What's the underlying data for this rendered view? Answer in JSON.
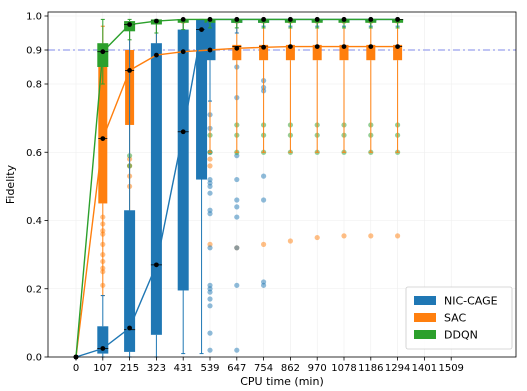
{
  "chart_data": {
    "type": "box",
    "xlabel": "CPU time (min)",
    "ylabel": "Fidelity",
    "x_ticks": [
      0,
      107,
      215,
      323,
      431,
      539,
      647,
      754,
      862,
      970,
      1078,
      1186,
      1294,
      1401,
      1509
    ],
    "y_ticks": [
      0.0,
      0.2,
      0.4,
      0.6,
      0.8,
      0.9,
      1.0
    ],
    "y_tick_labels": [
      "0.0",
      "0.2",
      "0.4",
      "0.6",
      "0.8",
      "0.9",
      "1.0"
    ],
    "xlim": [
      -54,
      1509
    ],
    "ylim": [
      0.0,
      1.0
    ],
    "y_scale": "piecewise linear: 0–0.8 compressed, 0.8–1.0 expanded",
    "reference_line": {
      "y": 0.9,
      "color": "#aab0f0",
      "style": "dash-dot"
    },
    "legend_position": "bottom-right",
    "grid": true,
    "series": [
      {
        "name": "NIC-CAGE",
        "color": "#1f77b4",
        "mean": [
          [
            0,
            0.0
          ],
          [
            107,
            0.025
          ],
          [
            215,
            0.085
          ],
          [
            323,
            0.27
          ],
          [
            431,
            0.66
          ],
          [
            505,
            0.96
          ],
          [
            539,
            0.99
          ],
          [
            647,
            0.99
          ],
          [
            754,
            0.99
          ],
          [
            862,
            0.99
          ],
          [
            970,
            0.99
          ],
          [
            1078,
            0.99
          ],
          [
            1186,
            0.99
          ],
          [
            1294,
            0.99
          ]
        ],
        "boxes": [
          {
            "x": 107,
            "whislo": 0.0,
            "q1": 0.01,
            "med": 0.025,
            "q3": 0.09,
            "whishi": 0.18
          },
          {
            "x": 215,
            "whislo": 0.0,
            "q1": 0.015,
            "med": 0.08,
            "q3": 0.43,
            "whishi": 0.98
          },
          {
            "x": 323,
            "whislo": 0.0,
            "q1": 0.065,
            "med": 0.27,
            "q3": 0.92,
            "whishi": 0.98
          },
          {
            "x": 431,
            "whislo": 0.01,
            "q1": 0.195,
            "med": 0.66,
            "q3": 0.96,
            "whishi": 0.99
          },
          {
            "x": 505,
            "whislo": 0.01,
            "q1": 0.52,
            "med": 0.96,
            "q3": 0.99,
            "whishi": 0.99
          },
          {
            "x": 539,
            "whislo": 0.75,
            "q1": 0.87,
            "med": 0.99,
            "q3": 0.99,
            "whishi": 0.99
          },
          {
            "x": 647,
            "whislo": 0.95,
            "q1": 0.98,
            "med": 0.99,
            "q3": 0.99,
            "whishi": 0.99
          },
          {
            "x": 754,
            "whislo": 0.97,
            "q1": 0.98,
            "med": 0.99,
            "q3": 0.99,
            "whishi": 0.99
          },
          {
            "x": 862,
            "whislo": 0.97,
            "q1": 0.985,
            "med": 0.99,
            "q3": 0.99,
            "whishi": 0.99
          },
          {
            "x": 970,
            "whislo": 0.97,
            "q1": 0.985,
            "med": 0.99,
            "q3": 0.99,
            "whishi": 0.99
          },
          {
            "x": 1078,
            "whislo": 0.97,
            "q1": 0.985,
            "med": 0.99,
            "q3": 0.99,
            "whishi": 0.99
          },
          {
            "x": 1186,
            "whislo": 0.97,
            "q1": 0.985,
            "med": 0.99,
            "q3": 0.99,
            "whishi": 0.99
          },
          {
            "x": 1294,
            "whislo": 0.97,
            "q1": 0.985,
            "med": 0.99,
            "q3": 0.99,
            "whishi": 0.99
          }
        ],
        "outliers": [
          [
            539,
            0.71
          ],
          [
            539,
            0.67
          ],
          [
            539,
            0.6
          ],
          [
            539,
            0.52
          ],
          [
            539,
            0.51
          ],
          [
            539,
            0.5
          ],
          [
            539,
            0.48
          ],
          [
            539,
            0.43
          ],
          [
            539,
            0.42
          ],
          [
            539,
            0.32
          ],
          [
            539,
            0.21
          ],
          [
            539,
            0.2
          ],
          [
            539,
            0.19
          ],
          [
            539,
            0.17
          ],
          [
            539,
            0.15
          ],
          [
            539,
            0.07
          ],
          [
            539,
            0.02
          ],
          [
            647,
            0.85
          ],
          [
            647,
            0.76
          ],
          [
            647,
            0.59
          ],
          [
            647,
            0.52
          ],
          [
            647,
            0.46
          ],
          [
            647,
            0.44
          ],
          [
            647,
            0.41
          ],
          [
            647,
            0.32
          ],
          [
            647,
            0.21
          ],
          [
            647,
            0.02
          ],
          [
            754,
            0.81
          ],
          [
            754,
            0.79
          ],
          [
            754,
            0.78
          ],
          [
            754,
            0.53
          ],
          [
            754,
            0.46
          ],
          [
            754,
            0.22
          ],
          [
            754,
            0.21
          ]
        ]
      },
      {
        "name": "SAC",
        "color": "#ff7f0e",
        "mean": [
          [
            0,
            0.0
          ],
          [
            107,
            0.64
          ],
          [
            215,
            0.84
          ],
          [
            323,
            0.885
          ],
          [
            431,
            0.895
          ],
          [
            539,
            0.9
          ],
          [
            647,
            0.905
          ],
          [
            754,
            0.908
          ],
          [
            862,
            0.91
          ],
          [
            970,
            0.91
          ],
          [
            1078,
            0.91
          ],
          [
            1186,
            0.91
          ],
          [
            1294,
            0.91
          ]
        ],
        "boxes": [
          {
            "x": 107,
            "whislo": 0.18,
            "q1": 0.45,
            "med": 0.64,
            "q3": 0.87,
            "whishi": 0.97
          },
          {
            "x": 215,
            "whislo": 0.03,
            "q1": 0.68,
            "med": 0.84,
            "q3": 0.9,
            "whishi": 0.97
          },
          {
            "x": 323,
            "whislo": 0.3,
            "q1": 0.85,
            "med": 0.885,
            "q3": 0.9,
            "whishi": 0.98
          },
          {
            "x": 431,
            "whislo": 0.41,
            "q1": 0.87,
            "med": 0.9,
            "q3": 0.905,
            "whishi": 0.98
          },
          {
            "x": 539,
            "whislo": 0.6,
            "q1": 0.885,
            "med": 0.905,
            "q3": 0.91,
            "whishi": 0.98
          },
          {
            "x": 647,
            "whislo": 0.6,
            "q1": 0.87,
            "med": 0.91,
            "q3": 0.915,
            "whishi": 0.98
          },
          {
            "x": 754,
            "whislo": 0.6,
            "q1": 0.87,
            "med": 0.91,
            "q3": 0.915,
            "whishi": 0.98
          },
          {
            "x": 862,
            "whislo": 0.6,
            "q1": 0.87,
            "med": 0.91,
            "q3": 0.915,
            "whishi": 0.98
          },
          {
            "x": 970,
            "whislo": 0.6,
            "q1": 0.87,
            "med": 0.91,
            "q3": 0.915,
            "whishi": 0.98
          },
          {
            "x": 1078,
            "whislo": 0.6,
            "q1": 0.87,
            "med": 0.91,
            "q3": 0.915,
            "whishi": 0.98
          },
          {
            "x": 1186,
            "whislo": 0.6,
            "q1": 0.87,
            "med": 0.91,
            "q3": 0.915,
            "whishi": 0.98
          },
          {
            "x": 1294,
            "whislo": 0.6,
            "q1": 0.87,
            "med": 0.91,
            "q3": 0.915,
            "whishi": 0.98
          }
        ],
        "outliers": [
          [
            107,
            0.41
          ],
          [
            107,
            0.39
          ],
          [
            107,
            0.37
          ],
          [
            107,
            0.36
          ],
          [
            107,
            0.33
          ],
          [
            107,
            0.3
          ],
          [
            107,
            0.28
          ],
          [
            107,
            0.26
          ],
          [
            107,
            0.25
          ],
          [
            107,
            0.21
          ],
          [
            215,
            0.58
          ],
          [
            215,
            0.56
          ],
          [
            215,
            0.53
          ],
          [
            215,
            0.5
          ],
          [
            323,
            0.62
          ],
          [
            323,
            0.57
          ],
          [
            431,
            0.3
          ],
          [
            539,
            0.58
          ],
          [
            539,
            0.56
          ],
          [
            539,
            0.33
          ],
          [
            647,
            0.32
          ],
          [
            754,
            0.33
          ],
          [
            862,
            0.34
          ],
          [
            970,
            0.35
          ],
          [
            1078,
            0.355
          ],
          [
            1186,
            0.355
          ],
          [
            1294,
            0.355
          ]
        ]
      },
      {
        "name": "DDQN",
        "color": "#2ca02c",
        "mean": [
          [
            0,
            0.0
          ],
          [
            107,
            0.895
          ],
          [
            215,
            0.975
          ],
          [
            323,
            0.985
          ],
          [
            431,
            0.99
          ],
          [
            539,
            0.99
          ],
          [
            647,
            0.99
          ],
          [
            754,
            0.99
          ],
          [
            862,
            0.99
          ],
          [
            970,
            0.99
          ],
          [
            1078,
            0.99
          ],
          [
            1186,
            0.99
          ],
          [
            1294,
            0.99
          ]
        ],
        "boxes": [
          {
            "x": 107,
            "whislo": 0.8,
            "q1": 0.85,
            "med": 0.895,
            "q3": 0.92,
            "whishi": 0.99
          },
          {
            "x": 215,
            "whislo": 0.93,
            "q1": 0.955,
            "med": 0.975,
            "q3": 0.985,
            "whishi": 0.99
          },
          {
            "x": 323,
            "whislo": 0.95,
            "q1": 0.975,
            "med": 0.985,
            "q3": 0.99,
            "whishi": 0.99
          },
          {
            "x": 431,
            "whislo": 0.96,
            "q1": 0.98,
            "med": 0.99,
            "q3": 0.99,
            "whishi": 0.99
          },
          {
            "x": 539,
            "whislo": 0.965,
            "q1": 0.98,
            "med": 0.99,
            "q3": 0.99,
            "whishi": 0.99
          },
          {
            "x": 647,
            "whislo": 0.965,
            "q1": 0.98,
            "med": 0.99,
            "q3": 0.99,
            "whishi": 0.99
          },
          {
            "x": 754,
            "whislo": 0.965,
            "q1": 0.98,
            "med": 0.99,
            "q3": 0.99,
            "whishi": 0.99
          },
          {
            "x": 862,
            "whislo": 0.965,
            "q1": 0.98,
            "med": 0.99,
            "q3": 0.99,
            "whishi": 0.99
          },
          {
            "x": 970,
            "whislo": 0.965,
            "q1": 0.98,
            "med": 0.99,
            "q3": 0.99,
            "whishi": 0.99
          },
          {
            "x": 1078,
            "whislo": 0.965,
            "q1": 0.98,
            "med": 0.99,
            "q3": 0.99,
            "whishi": 0.99
          },
          {
            "x": 1186,
            "whislo": 0.965,
            "q1": 0.98,
            "med": 0.99,
            "q3": 0.99,
            "whishi": 0.99
          },
          {
            "x": 1294,
            "whislo": 0.965,
            "q1": 0.98,
            "med": 0.99,
            "q3": 0.99,
            "whishi": 0.99
          }
        ],
        "outliers": [
          [
            215,
            0.59
          ],
          [
            215,
            0.56
          ],
          [
            323,
            0.6
          ],
          [
            539,
            0.65
          ],
          [
            539,
            0.6
          ],
          [
            647,
            0.68
          ],
          [
            647,
            0.65
          ],
          [
            647,
            0.6
          ],
          [
            754,
            0.68
          ],
          [
            754,
            0.65
          ],
          [
            754,
            0.6
          ],
          [
            862,
            0.68
          ],
          [
            862,
            0.65
          ],
          [
            862,
            0.6
          ],
          [
            970,
            0.68
          ],
          [
            970,
            0.65
          ],
          [
            970,
            0.6
          ],
          [
            1078,
            0.68
          ],
          [
            1078,
            0.65
          ],
          [
            1078,
            0.6
          ],
          [
            1186,
            0.68
          ],
          [
            1186,
            0.65
          ],
          [
            1186,
            0.6
          ],
          [
            1294,
            0.68
          ],
          [
            1294,
            0.65
          ],
          [
            1294,
            0.6
          ]
        ]
      }
    ]
  }
}
